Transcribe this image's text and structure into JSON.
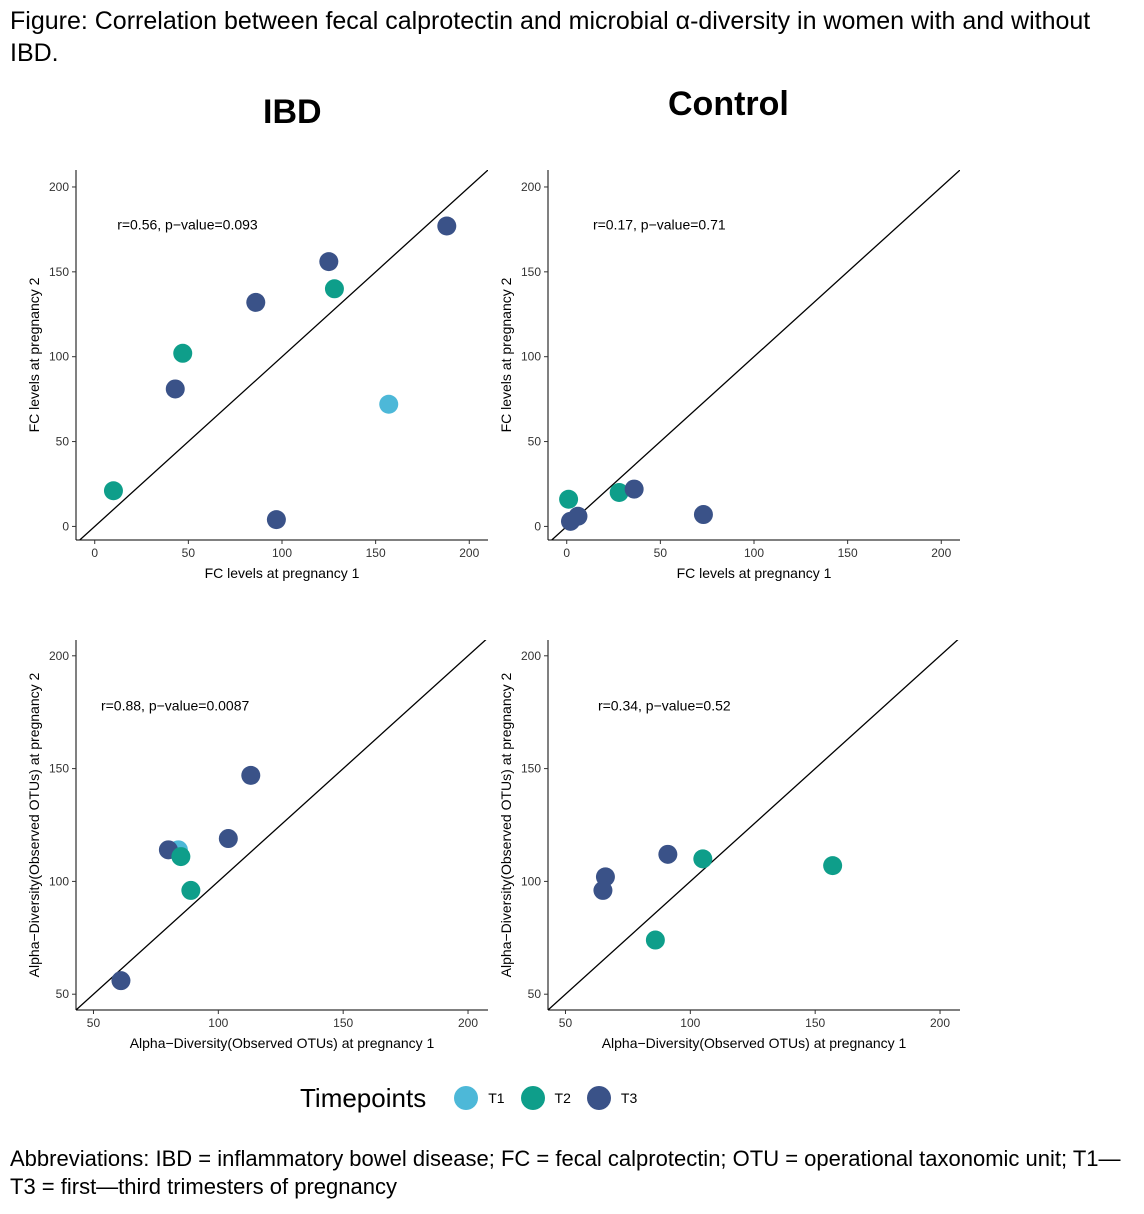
{
  "figure": {
    "title": "Figure: Correlation between fecal calprotectin and microbial α-diversity in women with and without IBD.",
    "footnote": "Abbreviations: IBD = inflammatory bowel disease; FC = fecal calprotectin; OTU = operational taxonomic unit; T1—T3 = first—third trimesters of pregnancy",
    "column_titles": [
      "IBD",
      "Control"
    ]
  },
  "legend": {
    "title": "Timepoints",
    "items": [
      {
        "label": "T1",
        "color": "#4db8d8"
      },
      {
        "label": "T2",
        "color": "#0e9e8a"
      },
      {
        "label": "T3",
        "color": "#3a5288"
      }
    ]
  },
  "chart_data": [
    {
      "type": "scatter",
      "group": "IBD",
      "xlabel": "FC levels at pregnancy 1",
      "ylabel": "FC levels at pregnancy 2",
      "xlim": [
        -10,
        210
      ],
      "ylim": [
        -8,
        210
      ],
      "xticks": [
        0,
        50,
        100,
        150,
        200
      ],
      "yticks": [
        0,
        50,
        100,
        150,
        200
      ],
      "annotation": "r=0.56, p−value=0.093",
      "annotation_pos": [
        12,
        178
      ],
      "identity_line": true,
      "points": [
        {
          "x": 10,
          "y": 21,
          "timepoint": "T2"
        },
        {
          "x": 43,
          "y": 81,
          "timepoint": "T3"
        },
        {
          "x": 47,
          "y": 102,
          "timepoint": "T2"
        },
        {
          "x": 86,
          "y": 132,
          "timepoint": "T3"
        },
        {
          "x": 97,
          "y": 4,
          "timepoint": "T3"
        },
        {
          "x": 125,
          "y": 156,
          "timepoint": "T3"
        },
        {
          "x": 128,
          "y": 140,
          "timepoint": "T2"
        },
        {
          "x": 157,
          "y": 72,
          "timepoint": "T1"
        },
        {
          "x": 188,
          "y": 177,
          "timepoint": "T3"
        }
      ]
    },
    {
      "type": "scatter",
      "group": "Control",
      "xlabel": "FC levels at pregnancy 1",
      "ylabel": "FC levels at pregnancy 2",
      "xlim": [
        -10,
        210
      ],
      "ylim": [
        -8,
        210
      ],
      "xticks": [
        0,
        50,
        100,
        150,
        200
      ],
      "yticks": [
        0,
        50,
        100,
        150,
        200
      ],
      "annotation": "r=0.17, p−value=0.71",
      "annotation_pos": [
        14,
        178
      ],
      "identity_line": true,
      "points": [
        {
          "x": 1,
          "y": 16,
          "timepoint": "T2"
        },
        {
          "x": 2,
          "y": 3,
          "timepoint": "T3"
        },
        {
          "x": 6,
          "y": 6,
          "timepoint": "T3"
        },
        {
          "x": 28,
          "y": 20,
          "timepoint": "T2"
        },
        {
          "x": 36,
          "y": 22,
          "timepoint": "T3"
        },
        {
          "x": 73,
          "y": 7,
          "timepoint": "T3"
        }
      ]
    },
    {
      "type": "scatter",
      "group": "IBD",
      "xlabel": "Alpha−Diversity(Observed OTUs) at pregnancy 1",
      "ylabel": "Alpha−Diversity(Observed OTUs) at pregnancy 2",
      "xlim": [
        43,
        208
      ],
      "ylim": [
        43,
        207
      ],
      "xticks": [
        50,
        100,
        150,
        200
      ],
      "yticks": [
        50,
        100,
        150,
        200
      ],
      "annotation": "r=0.88, p−value=0.0087",
      "annotation_pos": [
        53,
        178
      ],
      "identity_line": true,
      "points": [
        {
          "x": 84,
          "y": 114,
          "timepoint": "T1"
        },
        {
          "x": 80,
          "y": 114,
          "timepoint": "T3"
        },
        {
          "x": 85,
          "y": 111,
          "timepoint": "T2"
        },
        {
          "x": 89,
          "y": 96,
          "timepoint": "T2"
        },
        {
          "x": 61,
          "y": 56,
          "timepoint": "T3"
        },
        {
          "x": 104,
          "y": 119,
          "timepoint": "T3"
        },
        {
          "x": 113,
          "y": 147,
          "timepoint": "T3"
        }
      ]
    },
    {
      "type": "scatter",
      "group": "Control",
      "xlabel": "Alpha−Diversity(Observed OTUs) at pregnancy 1",
      "ylabel": "Alpha−Diversity(Observed OTUs) at pregnancy 2",
      "xlim": [
        43,
        208
      ],
      "ylim": [
        43,
        207
      ],
      "xticks": [
        50,
        100,
        150,
        200
      ],
      "yticks": [
        50,
        100,
        150,
        200
      ],
      "annotation": "r=0.34, p−value=0.52",
      "annotation_pos": [
        63,
        178
      ],
      "identity_line": true,
      "points": [
        {
          "x": 66,
          "y": 102,
          "timepoint": "T3"
        },
        {
          "x": 65,
          "y": 96,
          "timepoint": "T3"
        },
        {
          "x": 86,
          "y": 74,
          "timepoint": "T2"
        },
        {
          "x": 91,
          "y": 112,
          "timepoint": "T3"
        },
        {
          "x": 105,
          "y": 110,
          "timepoint": "T2"
        },
        {
          "x": 157,
          "y": 107,
          "timepoint": "T2"
        }
      ]
    }
  ]
}
